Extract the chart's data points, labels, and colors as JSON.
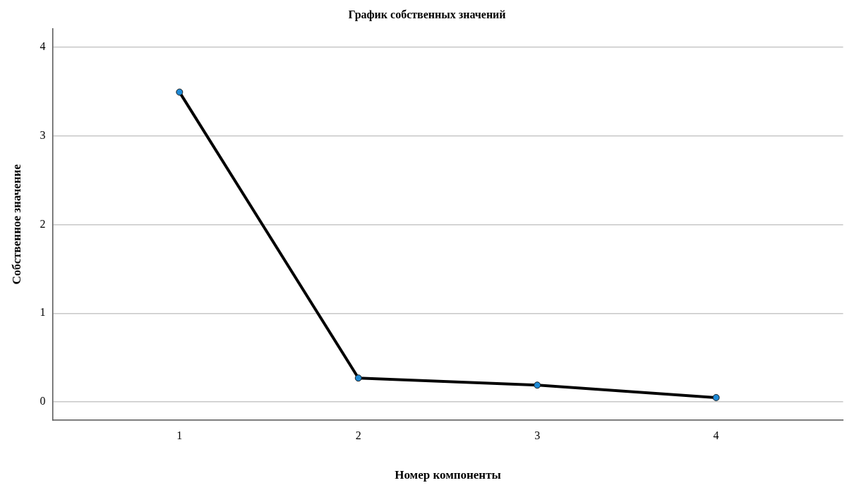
{
  "chart_data": {
    "type": "line",
    "title": "График собственных значений",
    "xlabel": "Номер компоненты",
    "ylabel": "Собственное значение",
    "x": [
      1,
      2,
      3,
      4
    ],
    "series": [
      {
        "color": "#000000",
        "values": [
          3.49,
          0.27,
          0.19,
          0.05
        ]
      }
    ],
    "xlim": [
      0.29,
      4.71
    ],
    "xticks": [
      1,
      2,
      3,
      4
    ],
    "ylim": [
      -0.2,
      4.2
    ],
    "yticks": [
      0,
      1,
      2,
      3,
      4
    ],
    "grid": "y",
    "marker": "circle",
    "line_style": "solid",
    "legend": false
  }
}
